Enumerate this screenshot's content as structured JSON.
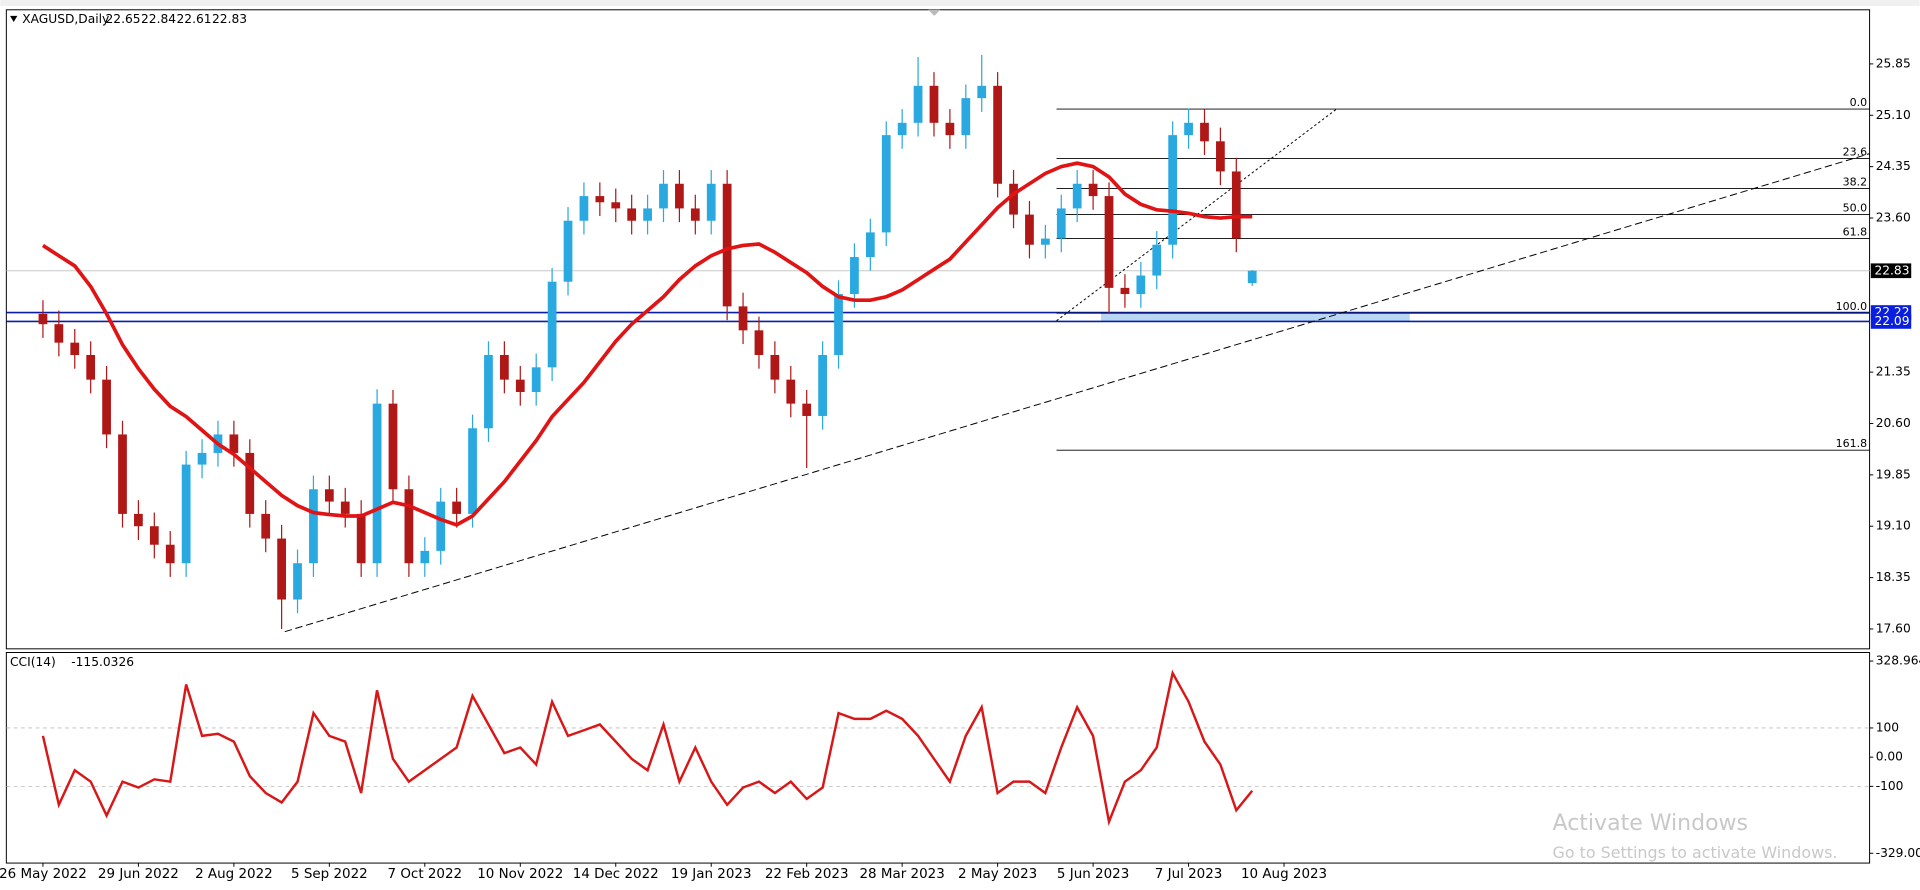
{
  "chart_data": [
    {
      "type": "candlestick",
      "title": "XAGUSD,Daily",
      "last_ohlc": [
        22.65,
        22.84,
        22.61,
        22.83
      ],
      "categories": [
        "26 May 2022",
        null,
        null,
        null,
        null,
        null,
        "29 Jun 2022",
        null,
        null,
        null,
        null,
        null,
        "2 Aug 2022",
        null,
        null,
        null,
        null,
        null,
        "5 Sep 2022",
        null,
        null,
        null,
        null,
        null,
        "7 Oct 2022",
        null,
        null,
        null,
        null,
        null,
        "10 Nov 2022",
        null,
        null,
        null,
        null,
        null,
        "14 Dec 2022",
        null,
        null,
        null,
        null,
        null,
        "19 Jan 2023",
        null,
        null,
        null,
        null,
        null,
        "22 Feb 2023",
        null,
        null,
        null,
        null,
        null,
        "28 Mar 2023",
        null,
        null,
        null,
        null,
        null,
        "2 May 2023",
        null,
        null,
        null,
        null,
        null,
        "5 Jun 2023",
        null,
        null,
        null,
        null,
        null,
        "7 Jul 2023",
        null,
        null,
        null,
        null,
        null,
        "10 Aug 2023"
      ],
      "open": [
        22.2,
        22.05,
        21.78,
        21.6,
        21.24,
        20.44,
        19.28,
        19.1,
        18.83,
        18.56,
        20.0,
        20.17,
        20.44,
        20.17,
        19.28,
        18.92,
        18.03,
        18.56,
        19.64,
        19.46,
        19.28,
        18.56,
        20.89,
        19.64,
        18.56,
        18.74,
        19.46,
        19.28,
        20.53,
        21.6,
        21.24,
        21.06,
        21.42,
        22.67,
        23.56,
        23.92,
        23.83,
        23.74,
        23.56,
        23.74,
        24.1,
        23.74,
        23.56,
        24.1,
        22.31,
        21.96,
        21.6,
        21.24,
        20.89,
        20.71,
        21.6,
        22.49,
        23.03,
        23.39,
        24.81,
        24.99,
        25.53,
        24.99,
        24.81,
        25.35,
        25.53,
        24.1,
        23.65,
        23.21,
        23.3,
        23.74,
        24.1,
        23.92,
        22.58,
        22.49,
        22.76,
        23.21,
        24.81,
        24.99,
        24.72,
        24.28,
        22.65,
        null,
        null
      ],
      "high": [
        22.4,
        22.25,
        21.98,
        21.8,
        21.44,
        20.64,
        19.48,
        19.3,
        19.03,
        20.2,
        20.37,
        20.64,
        20.64,
        20.37,
        19.48,
        19.12,
        18.76,
        19.84,
        19.84,
        19.66,
        19.48,
        21.1,
        21.09,
        19.84,
        18.94,
        19.66,
        19.66,
        20.73,
        21.8,
        21.8,
        21.44,
        21.62,
        22.87,
        23.76,
        24.12,
        24.12,
        24.03,
        23.94,
        23.94,
        24.3,
        24.3,
        23.94,
        24.3,
        24.3,
        22.51,
        22.16,
        21.8,
        21.44,
        21.09,
        21.8,
        22.69,
        23.23,
        23.59,
        25.01,
        25.19,
        25.95,
        25.73,
        25.19,
        25.55,
        25.98,
        25.73,
        24.3,
        23.85,
        23.5,
        23.94,
        24.3,
        24.3,
        24.12,
        22.78,
        22.96,
        23.41,
        25.01,
        25.2,
        25.19,
        24.92,
        24.48,
        22.84,
        null,
        null
      ],
      "low": [
        21.85,
        21.58,
        21.4,
        21.04,
        20.24,
        19.08,
        18.9,
        18.63,
        18.36,
        18.36,
        19.8,
        19.97,
        19.97,
        19.08,
        18.72,
        17.6,
        17.83,
        18.36,
        19.26,
        19.08,
        18.36,
        18.36,
        19.44,
        18.36,
        18.36,
        18.54,
        19.08,
        19.08,
        20.33,
        21.04,
        20.86,
        20.86,
        21.22,
        22.47,
        23.36,
        23.63,
        23.54,
        23.36,
        23.36,
        23.54,
        23.54,
        23.36,
        23.36,
        22.11,
        21.76,
        21.4,
        21.04,
        20.69,
        19.95,
        20.51,
        21.4,
        22.29,
        22.83,
        23.19,
        24.61,
        24.79,
        24.79,
        24.61,
        24.61,
        25.15,
        23.9,
        23.45,
        23.01,
        23.01,
        23.1,
        23.54,
        23.72,
        22.2,
        22.29,
        22.29,
        22.56,
        23.01,
        24.61,
        24.52,
        24.08,
        23.1,
        22.61,
        null,
        null
      ],
      "close": [
        22.05,
        21.78,
        21.6,
        21.24,
        20.44,
        19.28,
        19.1,
        18.83,
        18.56,
        20.0,
        20.17,
        20.44,
        20.17,
        19.28,
        18.92,
        18.03,
        18.56,
        19.64,
        19.46,
        19.28,
        18.56,
        20.89,
        19.64,
        18.56,
        18.74,
        19.46,
        19.28,
        20.53,
        21.6,
        21.24,
        21.06,
        21.42,
        22.67,
        23.56,
        23.92,
        23.83,
        23.74,
        23.56,
        23.74,
        24.1,
        23.74,
        23.56,
        24.1,
        22.31,
        21.96,
        21.6,
        21.24,
        20.89,
        20.71,
        21.6,
        22.49,
        23.03,
        23.39,
        24.81,
        24.99,
        25.53,
        24.99,
        24.81,
        25.35,
        25.53,
        24.1,
        23.65,
        23.21,
        23.3,
        23.74,
        24.1,
        23.92,
        22.58,
        22.49,
        22.76,
        23.21,
        24.81,
        24.99,
        24.72,
        24.28,
        23.3,
        22.83,
        null,
        null
      ],
      "up_color": "#2aa8e0",
      "down_color": "#b01818",
      "ma": {
        "color": "#e01414",
        "values": [
          23.2,
          23.05,
          22.9,
          22.6,
          22.2,
          21.75,
          21.4,
          21.1,
          20.85,
          20.7,
          20.5,
          20.3,
          20.15,
          19.95,
          19.75,
          19.55,
          19.4,
          19.3,
          19.27,
          19.25,
          19.25,
          19.35,
          19.45,
          19.4,
          19.3,
          19.2,
          19.12,
          19.25,
          19.5,
          19.75,
          20.05,
          20.35,
          20.7,
          20.95,
          21.2,
          21.5,
          21.8,
          22.05,
          22.25,
          22.45,
          22.7,
          22.9,
          23.05,
          23.15,
          23.2,
          23.22,
          23.1,
          22.95,
          22.8,
          22.6,
          22.45,
          22.4,
          22.4,
          22.45,
          22.55,
          22.7,
          22.85,
          23.0,
          23.25,
          23.5,
          23.75,
          23.95,
          24.1,
          24.25,
          24.35,
          24.4,
          24.35,
          24.2,
          23.95,
          23.8,
          23.72,
          23.7,
          23.67,
          23.62,
          23.6,
          23.62,
          23.62,
          null,
          null
        ]
      },
      "xlim": [
        -2.3,
        114.8
      ],
      "ylim": [
        17.31,
        26.64
      ],
      "yticks": [
        25.85,
        {
          "value": 25.1,
          "label": "25.10"
        },
        24.35,
        {
          "value": 23.6,
          "label": "23.60"
        },
        21.35,
        {
          "value": 20.6,
          "label": "20.60"
        },
        19.85,
        {
          "value": 19.1,
          "label": "19.10"
        },
        18.35,
        {
          "value": 17.6,
          "label": "17.60"
        }
      ],
      "price_lines": [
        {
          "value": 22.83,
          "color": "#000000"
        },
        {
          "value": 22.22,
          "color": "#0a1ea8"
        },
        {
          "value": 22.09,
          "color": "#0a1ea8"
        }
      ],
      "fib": {
        "x": [
          63.7,
          114.8
        ],
        "levels": [
          {
            "label": "0.0",
            "value": 25.19
          },
          {
            "label": "23.6",
            "value": 24.47
          },
          {
            "label": "38.2",
            "value": 24.03
          },
          {
            "label": "50.0",
            "value": 23.65
          },
          {
            "label": "61.8",
            "value": 23.3
          },
          {
            "label": "100.0",
            "value": 22.21
          },
          {
            "label": "161.8",
            "value": 20.21
          }
        ]
      },
      "trendlines": [
        {
          "x": [
            15.2,
            114.8
          ],
          "y": [
            17.56,
            24.54
          ],
          "style": "dashed"
        },
        {
          "x": [
            63.7,
            81.3
          ],
          "y": [
            22.1,
            25.19
          ],
          "style": "dotted"
        }
      ],
      "zone": {
        "x": [
          66.5,
          85.9
        ],
        "y": [
          22.09,
          22.22
        ],
        "color": "#a8cdf0"
      }
    },
    {
      "type": "line",
      "title": "CCI(14)",
      "value": -115.0326,
      "color": "#d81818",
      "values": [
        73,
        -163,
        -45,
        -84,
        -200,
        -84,
        -104,
        -76,
        -84,
        249,
        73,
        80,
        53,
        -65,
        -123,
        -155,
        -84,
        151,
        73,
        53,
        -123,
        229,
        -6,
        -84,
        -45,
        -6,
        33,
        210,
        112,
        14,
        33,
        -25,
        190,
        73,
        92,
        112,
        53,
        -6,
        -45,
        112,
        -84,
        33,
        -84,
        -163,
        -104,
        -84,
        -123,
        -84,
        -143,
        -104,
        151,
        131,
        131,
        159,
        131,
        73,
        -6,
        -84,
        73,
        171,
        -123,
        -84,
        -84,
        -123,
        33,
        171,
        73,
        -221,
        -84,
        -45,
        33,
        288,
        190,
        53,
        -25,
        -182,
        -115.0326,
        null,
        null
      ],
      "ylim": [
        -329,
        328.964
      ],
      "yticks": [
        328.964,
        100,
        {
          "value": 0,
          "label": "0.00"
        },
        -100,
        {
          "value": -329,
          "label": "-329.000"
        }
      ],
      "levels": [
        100,
        -100
      ]
    }
  ],
  "watermark": {
    "title": "Activate Windows",
    "subtitle": "Go to Settings to activate Windows."
  }
}
